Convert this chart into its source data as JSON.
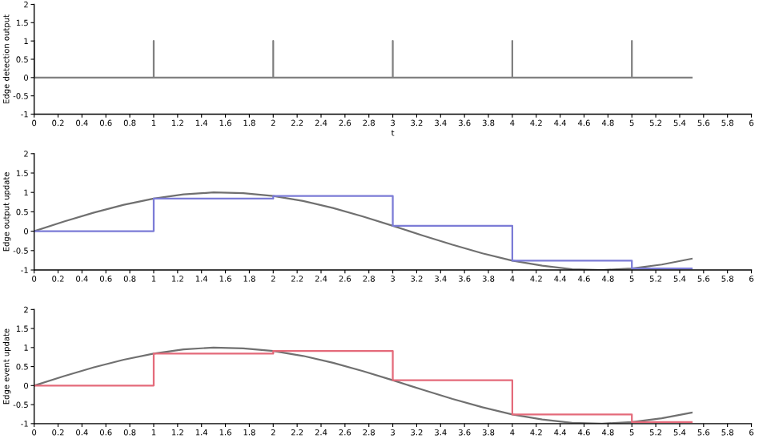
{
  "chart_data": [
    {
      "type": "line",
      "xlabel": "t",
      "ylabel": "Edge detection output",
      "xlim": [
        0,
        6
      ],
      "ylim": [
        -1,
        2
      ],
      "xticks": [
        0,
        0.2,
        0.4,
        0.6,
        0.8,
        1,
        1.2,
        1.4,
        1.6,
        1.8,
        2,
        2.2,
        2.4,
        2.6,
        2.8,
        3,
        3.2,
        3.4,
        3.6,
        3.8,
        4,
        4.2,
        4.4,
        4.6,
        4.8,
        5,
        5.2,
        5.4,
        5.6,
        5.8,
        6
      ],
      "yticks": [
        -1,
        -0.5,
        0,
        0.5,
        1,
        1.5,
        2
      ],
      "grid": false,
      "series": [
        {
          "color": "#808080",
          "x": [
            0,
            0,
            1,
            1,
            1,
            2,
            2,
            2,
            3,
            3,
            3,
            4,
            4,
            4,
            5,
            5,
            5,
            5.5
          ],
          "values": [
            1,
            0,
            0,
            1,
            0,
            0,
            1,
            0,
            0,
            1,
            0,
            0,
            1,
            0,
            0,
            1,
            0,
            0
          ]
        }
      ]
    },
    {
      "type": "line",
      "ylabel": "Edge output update",
      "xlim": [
        0,
        6
      ],
      "ylim": [
        -1,
        2
      ],
      "xticks": [
        0,
        0.2,
        0.4,
        0.6,
        0.8,
        1,
        1.2,
        1.4,
        1.6,
        1.8,
        2,
        2.2,
        2.4,
        2.6,
        2.8,
        3,
        3.2,
        3.4,
        3.6,
        3.8,
        4,
        4.2,
        4.4,
        4.6,
        4.8,
        5,
        5.2,
        5.4,
        5.6,
        5.8,
        6
      ],
      "yticks": [
        -1,
        -0.5,
        0,
        0.5,
        1,
        1.5,
        2
      ],
      "grid": false,
      "series": [
        {
          "color": "#707070",
          "x": [
            0,
            0.25,
            0.5,
            0.75,
            1,
            1.25,
            1.5,
            1.75,
            2,
            2.25,
            2.5,
            2.75,
            3,
            3.25,
            3.5,
            3.75,
            4,
            4.25,
            4.5,
            4.75,
            5,
            5.25,
            5.5
          ],
          "values": [
            0,
            0.25,
            0.48,
            0.68,
            0.84,
            0.95,
            1.0,
            0.98,
            0.91,
            0.78,
            0.6,
            0.38,
            0.14,
            -0.11,
            -0.35,
            -0.57,
            -0.76,
            -0.89,
            -0.98,
            -1.0,
            -0.96,
            -0.86,
            -0.71
          ]
        },
        {
          "type": "step",
          "color": "#7b7bd6",
          "x": [
            0,
            1,
            2,
            3,
            4,
            5,
            5.5
          ],
          "values": [
            0,
            0.84,
            0.91,
            0.14,
            -0.76,
            -0.96,
            -0.96
          ]
        }
      ]
    },
    {
      "type": "line",
      "ylabel": "Edge event update",
      "xlim": [
        0,
        6
      ],
      "ylim": [
        -1,
        2
      ],
      "xticks": [
        0,
        0.2,
        0.4,
        0.6,
        0.8,
        1,
        1.2,
        1.4,
        1.6,
        1.8,
        2,
        2.2,
        2.4,
        2.6,
        2.8,
        3,
        3.2,
        3.4,
        3.6,
        3.8,
        4,
        4.2,
        4.4,
        4.6,
        4.8,
        5,
        5.2,
        5.4,
        5.6,
        5.8,
        6
      ],
      "yticks": [
        -1,
        -0.5,
        0,
        0.5,
        1,
        1.5,
        2
      ],
      "grid": false,
      "series": [
        {
          "color": "#707070",
          "x": [
            0,
            0.25,
            0.5,
            0.75,
            1,
            1.25,
            1.5,
            1.75,
            2,
            2.25,
            2.5,
            2.75,
            3,
            3.25,
            3.5,
            3.75,
            4,
            4.25,
            4.5,
            4.75,
            5,
            5.25,
            5.5
          ],
          "values": [
            0,
            0.25,
            0.48,
            0.68,
            0.84,
            0.95,
            1.0,
            0.98,
            0.91,
            0.78,
            0.6,
            0.38,
            0.14,
            -0.11,
            -0.35,
            -0.57,
            -0.76,
            -0.89,
            -0.98,
            -1.0,
            -0.96,
            -0.86,
            -0.71
          ]
        },
        {
          "type": "step",
          "color": "#e46a7a",
          "x": [
            0,
            1,
            2,
            3,
            4,
            5,
            5.5
          ],
          "values": [
            0,
            0.84,
            0.91,
            0.14,
            -0.76,
            -0.96,
            -0.96
          ]
        }
      ]
    }
  ]
}
